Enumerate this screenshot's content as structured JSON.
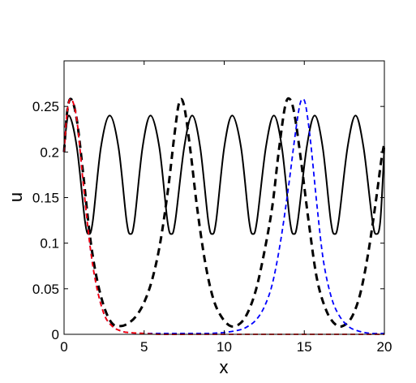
{
  "chart_data": {
    "type": "line",
    "title": "",
    "xlabel": "x",
    "ylabel": "u",
    "xlim": [
      0,
      20
    ],
    "ylim": [
      0,
      0.3
    ],
    "xticks": [
      "0",
      "5",
      "10",
      "15",
      "20"
    ],
    "yticks": [
      "0",
      "0.05",
      "0.1",
      "0.15",
      "0.2",
      "0.25"
    ],
    "grid": false,
    "legend": "none",
    "series": [
      {
        "style": "solid",
        "color": "#000000",
        "x": [
          0,
          0.3,
          0.8,
          1.3,
          1.55,
          1.8,
          2.3,
          2.85,
          3.4,
          3.9,
          4.15,
          4.4,
          4.9,
          5.4,
          5.95,
          6.45,
          6.7,
          6.95,
          7.5,
          8.0,
          8.5,
          9.0,
          9.25,
          9.5,
          10.0,
          10.5,
          11.05,
          11.55,
          11.8,
          12.05,
          12.6,
          13.1,
          13.6,
          14.1,
          14.35,
          14.6,
          15.15,
          15.65,
          16.15,
          16.65,
          16.9,
          17.15,
          17.7,
          18.2,
          18.7,
          19.25,
          19.5,
          19.75,
          20.0
        ],
        "y": [
          0.205,
          0.24,
          0.205,
          0.125,
          0.11,
          0.125,
          0.205,
          0.24,
          0.205,
          0.125,
          0.11,
          0.125,
          0.205,
          0.24,
          0.205,
          0.125,
          0.11,
          0.125,
          0.205,
          0.24,
          0.205,
          0.125,
          0.11,
          0.125,
          0.205,
          0.24,
          0.205,
          0.125,
          0.11,
          0.125,
          0.205,
          0.24,
          0.205,
          0.125,
          0.11,
          0.125,
          0.205,
          0.24,
          0.205,
          0.125,
          0.11,
          0.125,
          0.205,
          0.24,
          0.205,
          0.125,
          0.11,
          0.125,
          0.205
        ]
      },
      {
        "style": "thick-dashed",
        "color": "#000000",
        "x": [
          0,
          0.2,
          0.45,
          0.8,
          1.2,
          1.6,
          2.0,
          2.5,
          3.0,
          3.5,
          4.0,
          4.5,
          5.0,
          5.5,
          6.0,
          6.5,
          6.9,
          7.2,
          7.5,
          7.9,
          8.3,
          8.8,
          9.3,
          9.8,
          10.4,
          11.0,
          11.5,
          12.0,
          12.5,
          13.0,
          13.4,
          13.8,
          14.1,
          14.4,
          14.8,
          15.3,
          15.8,
          16.4,
          17.0,
          17.5,
          18.0,
          18.5,
          19.0,
          19.5,
          19.8,
          20.0
        ],
        "y": [
          0.2,
          0.245,
          0.258,
          0.235,
          0.175,
          0.11,
          0.065,
          0.03,
          0.012,
          0.009,
          0.012,
          0.02,
          0.035,
          0.06,
          0.1,
          0.16,
          0.22,
          0.255,
          0.25,
          0.2,
          0.14,
          0.08,
          0.04,
          0.02,
          0.009,
          0.012,
          0.025,
          0.05,
          0.09,
          0.14,
          0.2,
          0.25,
          0.258,
          0.24,
          0.19,
          0.12,
          0.06,
          0.025,
          0.01,
          0.01,
          0.02,
          0.045,
          0.09,
          0.15,
          0.19,
          0.21
        ]
      },
      {
        "style": "dashed",
        "color": "#0000ff",
        "x": [
          0,
          0.2,
          0.45,
          0.8,
          1.2,
          1.6,
          2.0,
          2.5,
          3.0,
          3.5,
          4.0,
          5.0,
          6.0,
          7.0,
          8.0,
          9.0,
          10.0,
          11.0,
          11.5,
          12.0,
          12.5,
          13.0,
          13.5,
          14.0,
          14.4,
          14.7,
          14.9,
          15.1,
          15.4,
          15.8,
          16.2,
          16.7,
          17.2,
          17.8,
          18.5,
          19.2,
          20.0
        ],
        "y": [
          0.2,
          0.245,
          0.258,
          0.235,
          0.165,
          0.1,
          0.055,
          0.022,
          0.009,
          0.004,
          0.002,
          0.001,
          0.001,
          0.001,
          0.001,
          0.001,
          0.002,
          0.005,
          0.009,
          0.016,
          0.03,
          0.055,
          0.1,
          0.16,
          0.215,
          0.25,
          0.258,
          0.25,
          0.21,
          0.14,
          0.08,
          0.04,
          0.02,
          0.008,
          0.003,
          0.001,
          0.001
        ]
      },
      {
        "style": "dashed",
        "color": "#ff0000",
        "x": [
          0,
          0.2,
          0.45,
          0.8,
          1.2,
          1.6,
          2.0,
          2.5,
          3.0,
          3.5,
          4.0,
          5.0,
          6.0,
          8.0,
          10.0,
          12.0,
          14.0,
          16.0,
          18.0,
          20.0
        ],
        "y": [
          0.2,
          0.245,
          0.258,
          0.235,
          0.165,
          0.1,
          0.055,
          0.022,
          0.009,
          0.004,
          0.002,
          0.001,
          0.0,
          0.0,
          0.0,
          0.0,
          0.0,
          0.0,
          0.0,
          0.0
        ]
      }
    ]
  }
}
